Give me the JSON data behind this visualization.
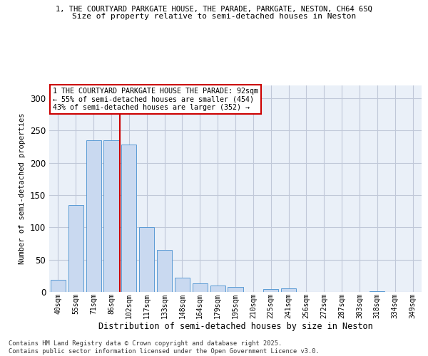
{
  "title1": "1, THE COURTYARD PARKGATE HOUSE, THE PARADE, PARKGATE, NESTON, CH64 6SQ",
  "title2": "Size of property relative to semi-detached houses in Neston",
  "xlabel": "Distribution of semi-detached houses by size in Neston",
  "ylabel": "Number of semi-detached properties",
  "categories": [
    "40sqm",
    "55sqm",
    "71sqm",
    "86sqm",
    "102sqm",
    "117sqm",
    "133sqm",
    "148sqm",
    "164sqm",
    "179sqm",
    "195sqm",
    "210sqm",
    "225sqm",
    "241sqm",
    "256sqm",
    "272sqm",
    "287sqm",
    "303sqm",
    "318sqm",
    "334sqm",
    "349sqm"
  ],
  "values": [
    19,
    135,
    235,
    235,
    228,
    100,
    65,
    22,
    13,
    10,
    8,
    0,
    4,
    5,
    0,
    0,
    0,
    0,
    1,
    0,
    0
  ],
  "bar_color": "#c9d9f0",
  "bar_edge_color": "#5b9bd5",
  "vline_color": "#cc0000",
  "vline_pos": 3.5,
  "annotation_title": "1 THE COURTYARD PARKGATE HOUSE THE PARADE: 92sqm",
  "annotation_line2": "← 55% of semi-detached houses are smaller (454)",
  "annotation_line3": "43% of semi-detached houses are larger (352) →",
  "annotation_box_edge": "#cc0000",
  "footer": "Contains HM Land Registry data © Crown copyright and database right 2025.\nContains public sector information licensed under the Open Government Licence v3.0.",
  "ylim": [
    0,
    320
  ],
  "yticks": [
    0,
    50,
    100,
    150,
    200,
    250,
    300
  ],
  "grid_color": "#c0c8d8",
  "bg_color": "#eaf0f8"
}
